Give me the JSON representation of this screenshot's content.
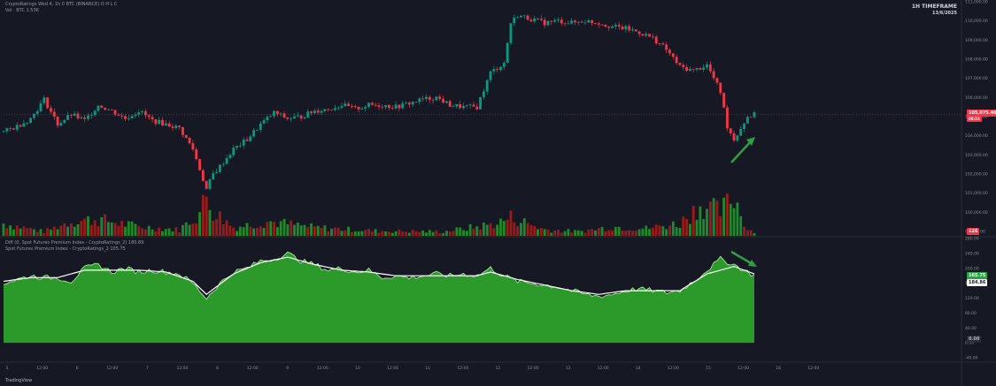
{
  "header": {
    "symbol_line": "CryptoRatings Wed 4, 1h 0 BTC (BINANCE) O H L C",
    "vol_line": "Vol · BTC  1.53K",
    "indicator_line": "Diff (0, Spot Futures Premium Index - CryptoRatings_2) 180.89",
    "indicator_line2": "Spot Futures Premium Index - CryptoRatings_2  105.75"
  },
  "timeframe": {
    "label": "1H TIMEFRAME",
    "date": "13/6/2025"
  },
  "price_tag": {
    "value": "105,075.40",
    "sub": "08:53",
    "color": "#f23645"
  },
  "vol_tag": {
    "value": "126",
    "color": "#f23645"
  },
  "ind_tags": [
    {
      "value": "165.75",
      "color": "#26a641"
    },
    {
      "value": "184.86",
      "color": "#ffffff"
    },
    {
      "value": "0.00",
      "color": "#b2b5be"
    }
  ],
  "logo": "TradingView",
  "colors": {
    "up": "#089981",
    "down": "#f23645",
    "vol_up": "#1f8a2a",
    "vol_down": "#9b1b1b",
    "area": "#2b9a2b",
    "arrow": "#2ea043"
  },
  "chart_data": [
    {
      "type": "candlestick",
      "title": "BTC 1H",
      "ylim": [
        99000,
        111000
      ],
      "y_ticks": [
        "111,000.00",
        "110,000.00",
        "109,000.00",
        "108,000.00",
        "107,000.00",
        "106,000.00",
        "105,000.00",
        "104,000.00",
        "103,000.00",
        "102,000.00",
        "101,000.00",
        "100,000.00",
        "99,000.00"
      ],
      "close_path": [
        [
          0,
          104200
        ],
        [
          4,
          104500
        ],
        [
          8,
          104900
        ],
        [
          12,
          105900
        ],
        [
          16,
          104600
        ],
        [
          20,
          105100
        ],
        [
          24,
          104800
        ],
        [
          28,
          105600
        ],
        [
          32,
          105300
        ],
        [
          36,
          104900
        ],
        [
          40,
          105300
        ],
        [
          44,
          104800
        ],
        [
          48,
          104600
        ],
        [
          52,
          104400
        ],
        [
          56,
          103300
        ],
        [
          60,
          101200
        ],
        [
          62,
          102000
        ],
        [
          64,
          102400
        ],
        [
          68,
          103300
        ],
        [
          72,
          103800
        ],
        [
          76,
          104600
        ],
        [
          80,
          105200
        ],
        [
          84,
          104900
        ],
        [
          88,
          105000
        ],
        [
          92,
          105300
        ],
        [
          96,
          105400
        ],
        [
          100,
          105600
        ],
        [
          104,
          105400
        ],
        [
          108,
          105600
        ],
        [
          112,
          105600
        ],
        [
          116,
          105500
        ],
        [
          120,
          105700
        ],
        [
          124,
          105900
        ],
        [
          128,
          106000
        ],
        [
          132,
          105600
        ],
        [
          136,
          105500
        ],
        [
          140,
          105500
        ],
        [
          144,
          107300
        ],
        [
          148,
          107800
        ],
        [
          150,
          109900
        ],
        [
          152,
          110300
        ],
        [
          156,
          110100
        ],
        [
          160,
          109900
        ],
        [
          164,
          110000
        ],
        [
          168,
          109900
        ],
        [
          172,
          110000
        ],
        [
          176,
          109900
        ],
        [
          180,
          109700
        ],
        [
          184,
          109600
        ],
        [
          188,
          109400
        ],
        [
          192,
          109100
        ],
        [
          196,
          108500
        ],
        [
          200,
          107600
        ],
        [
          204,
          107400
        ],
        [
          208,
          107700
        ],
        [
          212,
          106300
        ],
        [
          214,
          104500
        ],
        [
          216,
          103800
        ],
        [
          218,
          104400
        ],
        [
          220,
          105000
        ],
        [
          222,
          105100
        ]
      ],
      "volume_ylim": [
        0,
        100
      ],
      "volume_peaks": [
        [
          0,
          30
        ],
        [
          6,
          20
        ],
        [
          12,
          10
        ],
        [
          20,
          35
        ],
        [
          28,
          40
        ],
        [
          40,
          22
        ],
        [
          52,
          15
        ],
        [
          58,
          55
        ],
        [
          60,
          95
        ],
        [
          62,
          60
        ],
        [
          68,
          20
        ],
        [
          78,
          35
        ],
        [
          92,
          20
        ],
        [
          110,
          12
        ],
        [
          130,
          10
        ],
        [
          140,
          22
        ],
        [
          146,
          30
        ],
        [
          150,
          45
        ],
        [
          160,
          15
        ],
        [
          170,
          10
        ],
        [
          180,
          22
        ],
        [
          190,
          18
        ],
        [
          200,
          30
        ],
        [
          206,
          75
        ],
        [
          212,
          58
        ],
        [
          216,
          95
        ],
        [
          220,
          15
        ],
        [
          222,
          12
        ]
      ]
    },
    {
      "type": "area",
      "title": "Spot Futures Premium Index - CryptoRatings_2",
      "ylim": [
        -40,
        280
      ],
      "y_ticks": [
        "280.00",
        "240.00",
        "200.00",
        "160.00",
        "120.00",
        "80.00",
        "40.00",
        "0.00",
        "-40.00"
      ],
      "x_tick_labels": [
        "5",
        "12:00",
        "6",
        "12:00",
        "7",
        "12:00",
        "8",
        "12:00",
        "9",
        "12:00",
        "10",
        "12:00",
        "11",
        "12:00",
        "12",
        "12:00",
        "13",
        "12:00",
        "14",
        "12:00",
        "15",
        "12:00",
        "16",
        "12:00"
      ],
      "series": [
        {
          "name": "Spot Futures Premium Index",
          "values": [
            [
              0,
              160
            ],
            [
              4,
              170
            ],
            [
              8,
              180
            ],
            [
              12,
              175
            ],
            [
              16,
              175
            ],
            [
              20,
              165
            ],
            [
              24,
              200
            ],
            [
              28,
              210
            ],
            [
              32,
              190
            ],
            [
              36,
              200
            ],
            [
              40,
              190
            ],
            [
              44,
              195
            ],
            [
              48,
              190
            ],
            [
              52,
              185
            ],
            [
              56,
              160
            ],
            [
              60,
              120
            ],
            [
              64,
              160
            ],
            [
              68,
              190
            ],
            [
              72,
              200
            ],
            [
              76,
              220
            ],
            [
              80,
              225
            ],
            [
              84,
              240
            ],
            [
              88,
              220
            ],
            [
              92,
              210
            ],
            [
              96,
              195
            ],
            [
              100,
              200
            ],
            [
              104,
              190
            ],
            [
              108,
              195
            ],
            [
              112,
              175
            ],
            [
              116,
              180
            ],
            [
              120,
              175
            ],
            [
              124,
              180
            ],
            [
              128,
              185
            ],
            [
              132,
              180
            ],
            [
              136,
              185
            ],
            [
              140,
              180
            ],
            [
              144,
              200
            ],
            [
              148,
              180
            ],
            [
              152,
              165
            ],
            [
              156,
              160
            ],
            [
              160,
              155
            ],
            [
              164,
              150
            ],
            [
              168,
              140
            ],
            [
              172,
              130
            ],
            [
              176,
              125
            ],
            [
              180,
              130
            ],
            [
              184,
              140
            ],
            [
              188,
              145
            ],
            [
              192,
              140
            ],
            [
              196,
              135
            ],
            [
              200,
              140
            ],
            [
              204,
              165
            ],
            [
              208,
              195
            ],
            [
              212,
              225
            ],
            [
              216,
              210
            ],
            [
              220,
              190
            ],
            [
              222,
              180
            ]
          ]
        },
        {
          "name": "Diff",
          "values": [
            [
              0,
              165
            ],
            [
              8,
              175
            ],
            [
              16,
              175
            ],
            [
              24,
              195
            ],
            [
              32,
              195
            ],
            [
              40,
              195
            ],
            [
              48,
              190
            ],
            [
              56,
              165
            ],
            [
              60,
              130
            ],
            [
              68,
              185
            ],
            [
              76,
              215
            ],
            [
              84,
              230
            ],
            [
              92,
              210
            ],
            [
              100,
              195
            ],
            [
              108,
              190
            ],
            [
              116,
              180
            ],
            [
              124,
              180
            ],
            [
              132,
              180
            ],
            [
              140,
              180
            ],
            [
              144,
              190
            ],
            [
              152,
              170
            ],
            [
              160,
              155
            ],
            [
              168,
              140
            ],
            [
              176,
              130
            ],
            [
              184,
              140
            ],
            [
              192,
              140
            ],
            [
              200,
              140
            ],
            [
              208,
              185
            ],
            [
              216,
              205
            ],
            [
              222,
              185
            ]
          ]
        }
      ]
    }
  ]
}
